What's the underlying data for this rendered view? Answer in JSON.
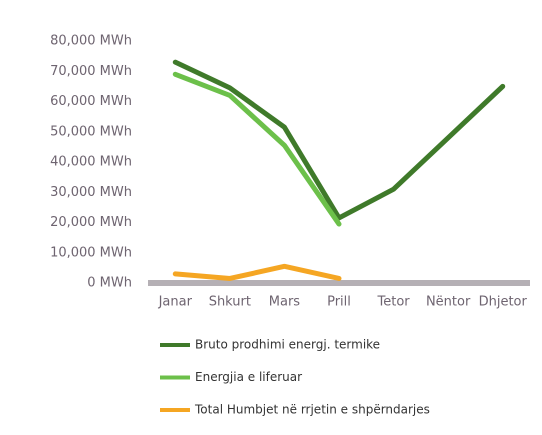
{
  "chart_data": {
    "type": "line",
    "categories": [
      "Janar",
      "Shkurt",
      "Mars",
      "Prill",
      "Tetor",
      "Nëntor",
      "Dhjetor"
    ],
    "series": [
      {
        "name": "Bruto prodhimi energj. termike",
        "color": "#3f7a2a",
        "values": [
          73000,
          64500,
          51500,
          21500,
          31000,
          48000,
          65000
        ]
      },
      {
        "name": "Energjia e liferuar",
        "color": "#6cc04a",
        "values": [
          69000,
          62000,
          45500,
          19500,
          null,
          null,
          null
        ]
      },
      {
        "name": "Total Humbjet në rrjetin e shpërndarjes",
        "color": "#f5a623",
        "values": [
          3000,
          1500,
          5500,
          1500,
          null,
          null,
          null
        ]
      }
    ],
    "ylim": [
      0,
      80000
    ],
    "yticks": [
      {
        "value": 0,
        "label": "0 MWh"
      },
      {
        "value": 10000,
        "label": "10,000 MWh"
      },
      {
        "value": 20000,
        "label": "20,000 MWh"
      },
      {
        "value": 30000,
        "label": "30,000 MWh"
      },
      {
        "value": 40000,
        "label": "40,000 MWh"
      },
      {
        "value": 50000,
        "label": "50,000 MWh"
      },
      {
        "value": 60000,
        "label": "60,000 MWh"
      },
      {
        "value": 70000,
        "label": "70,000 MWh"
      },
      {
        "value": 80000,
        "label": "80,000 MWh"
      }
    ],
    "grid": false,
    "legend": "bottom"
  }
}
